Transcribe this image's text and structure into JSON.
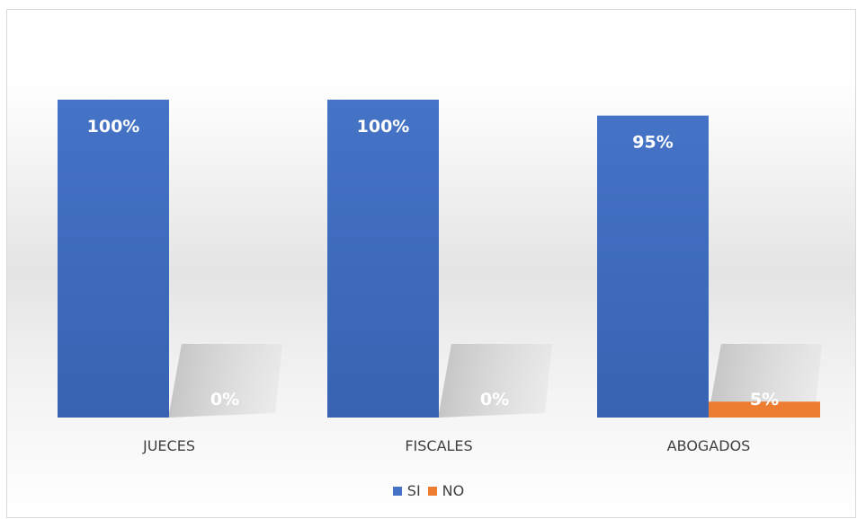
{
  "chart_data": {
    "type": "bar",
    "categories": [
      "JUECES",
      "FISCALES",
      "ABOGADOS"
    ],
    "series": [
      {
        "name": "SI",
        "values": [
          100,
          100,
          95
        ],
        "labels": [
          "100%",
          "100%",
          "95%"
        ],
        "color": "#4472c4"
      },
      {
        "name": "NO",
        "values": [
          0,
          0,
          5
        ],
        "labels": [
          "0%",
          "0%",
          "5%"
        ],
        "color": "#ed7d31"
      }
    ],
    "title": "",
    "xlabel": "",
    "ylabel": "",
    "ylim": [
      0,
      100
    ],
    "unit": "%",
    "grid": false,
    "legend_position": "bottom"
  }
}
